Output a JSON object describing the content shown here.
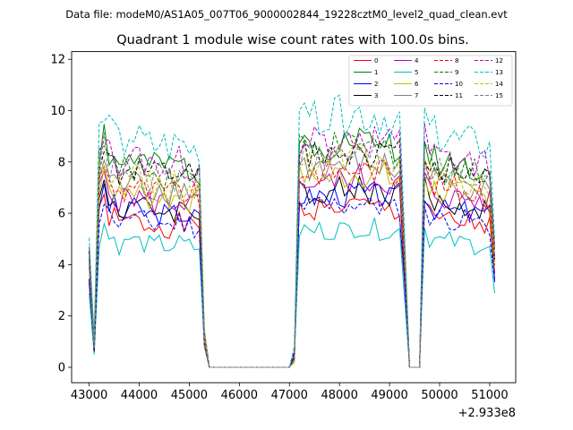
{
  "figure": {
    "suptitle": "Data file: modeM0/AS1A05_007T06_9000002844_19228cztM0_level2_quad_clean.evt"
  },
  "chart_data": {
    "type": "line",
    "title": "Quadrant 1 module wise count rates with 100.0s bins.",
    "xlabel": "",
    "ylabel": "",
    "x_offset_label": "+2.933e8",
    "xlim": [
      42650,
      51520
    ],
    "ylim": [
      -0.6,
      12.3
    ],
    "xticks": [
      43000,
      44000,
      45000,
      46000,
      47000,
      48000,
      49000,
      50000,
      51000
    ],
    "xtick_labels": [
      "43000",
      "44000",
      "45000",
      "46000",
      "47000",
      "48000",
      "49000",
      "50000",
      "51000"
    ],
    "yticks": [
      0,
      2,
      4,
      6,
      8,
      10,
      12
    ],
    "ytick_labels": [
      "0",
      "2",
      "4",
      "6",
      "8",
      "10",
      "12"
    ],
    "legend_position": "top-right",
    "base_curve": {
      "x": [
        43000,
        43100,
        43200,
        43300,
        43400,
        43500,
        43600,
        43700,
        43800,
        43900,
        44000,
        44100,
        44200,
        44300,
        44400,
        44500,
        44600,
        44700,
        44800,
        44900,
        45000,
        45100,
        45200,
        45300,
        45400,
        45500,
        45600,
        45700,
        45800,
        45900,
        46000,
        46100,
        46200,
        46300,
        46400,
        46500,
        46600,
        46700,
        46800,
        46900,
        47000,
        47100,
        47200,
        47300,
        47400,
        47500,
        47600,
        47700,
        47800,
        47900,
        48000,
        48100,
        48200,
        48300,
        48400,
        48500,
        48600,
        48700,
        48800,
        48900,
        49000,
        49100,
        49200,
        49300,
        49400,
        49500,
        49600,
        49700,
        49800,
        49900,
        50000,
        50100,
        50200,
        50300,
        50400,
        50500,
        50600,
        50700,
        50800,
        50900,
        51000,
        51100
      ],
      "y": [
        0.5,
        0.1,
        0.9,
        1.0,
        0.9,
        0.9,
        0.85,
        0.85,
        0.9,
        0.88,
        0.87,
        0.86,
        0.85,
        0.84,
        0.86,
        0.85,
        0.84,
        0.85,
        0.86,
        0.85,
        0.84,
        0.83,
        0.84,
        0.15,
        0,
        0,
        0,
        0,
        0,
        0,
        0,
        0,
        0,
        0,
        0,
        0,
        0,
        0,
        0,
        0,
        0,
        0.05,
        0.95,
        0.96,
        0.94,
        0.95,
        0.96,
        0.95,
        0.94,
        0.96,
        0.97,
        0.95,
        0.96,
        0.97,
        0.98,
        0.96,
        0.95,
        0.97,
        0.95,
        0.96,
        0.94,
        0.93,
        0.95,
        0.5,
        0,
        0,
        0,
        0.97,
        0.9,
        0.89,
        0.88,
        0.87,
        0.88,
        0.87,
        0.86,
        0.87,
        0.86,
        0.85,
        0.86,
        0.85,
        0.84,
        0.5
      ]
    },
    "series": [
      {
        "name": "0",
        "color": "#ff0000",
        "dash": "solid",
        "level": 6.5,
        "seed": 1
      },
      {
        "name": "1",
        "color": "#008000",
        "dash": "solid",
        "level": 9.2,
        "seed": 2
      },
      {
        "name": "2",
        "color": "#0000ff",
        "dash": "solid",
        "level": 7.0,
        "seed": 3
      },
      {
        "name": "3",
        "color": "#000000",
        "dash": "solid",
        "level": 7.2,
        "seed": 4
      },
      {
        "name": "4",
        "color": "#bf00bf",
        "dash": "solid",
        "level": 7.6,
        "seed": 5
      },
      {
        "name": "5",
        "color": "#00bfbf",
        "dash": "solid",
        "level": 5.6,
        "seed": 6
      },
      {
        "name": "6",
        "color": "#bfbf00",
        "dash": "solid",
        "level": 7.8,
        "seed": 7
      },
      {
        "name": "7",
        "color": "#808080",
        "dash": "solid",
        "level": 8.2,
        "seed": 8
      },
      {
        "name": "8",
        "color": "#ff0000",
        "dash": "dashed",
        "level": 8.0,
        "seed": 9
      },
      {
        "name": "9",
        "color": "#008000",
        "dash": "dashed",
        "level": 8.9,
        "seed": 10
      },
      {
        "name": "10",
        "color": "#0000ff",
        "dash": "dashed",
        "level": 6.6,
        "seed": 11
      },
      {
        "name": "11",
        "color": "#000000",
        "dash": "dashed",
        "level": 8.8,
        "seed": 12
      },
      {
        "name": "12",
        "color": "#bf00bf",
        "dash": "dashed",
        "level": 9.3,
        "seed": 13
      },
      {
        "name": "13",
        "color": "#00bfbf",
        "dash": "dashed",
        "level": 10.2,
        "seed": 14
      },
      {
        "name": "14",
        "color": "#bfbf00",
        "dash": "dashed",
        "level": 8.4,
        "seed": 15
      },
      {
        "name": "15",
        "color": "#808080",
        "dash": "dashed",
        "level": 8.6,
        "seed": 16
      }
    ]
  }
}
